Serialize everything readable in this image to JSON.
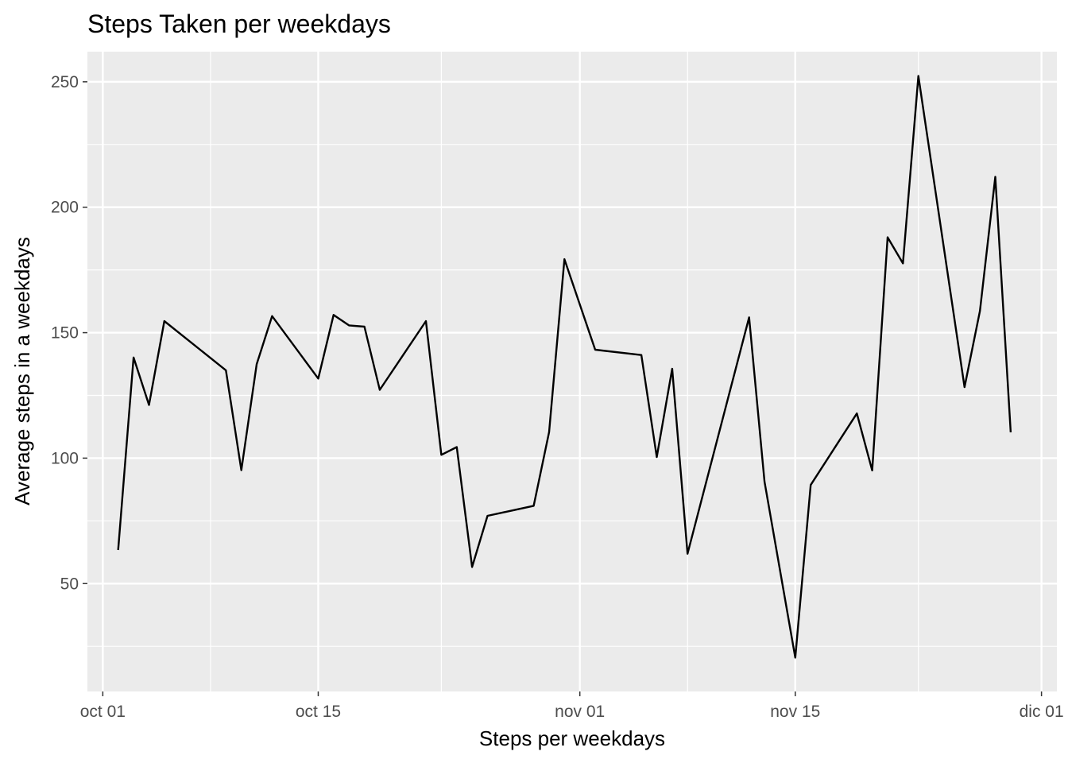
{
  "chart_data": {
    "type": "line",
    "title": "Steps Taken per weekdays",
    "xlabel": "Steps per weekdays",
    "ylabel": "Average steps in a weekdays",
    "x_ticks": [
      {
        "date": "2012-10-01",
        "label": "oct 01"
      },
      {
        "date": "2012-10-15",
        "label": "oct 15"
      },
      {
        "date": "2012-11-01",
        "label": "nov 01"
      },
      {
        "date": "2012-11-15",
        "label": "nov 15"
      },
      {
        "date": "2012-12-01",
        "label": "dic 01"
      }
    ],
    "x_minor_ticks": [
      "2012-10-08",
      "2012-10-23",
      "2012-11-08",
      "2012-11-23"
    ],
    "y_ticks": [
      50,
      100,
      150,
      200,
      250
    ],
    "y_minor_ticks": [
      25,
      75,
      125,
      175,
      225
    ],
    "xlim": [
      "2012-09-30",
      "2012-12-02"
    ],
    "ylim": [
      7,
      262
    ],
    "grid": true,
    "colors": {
      "panel": "#EBEBEB",
      "grid": "#FFFFFF",
      "line": "#000000"
    },
    "series": [
      {
        "x": [
          "2012-10-02",
          "2012-10-03",
          "2012-10-04",
          "2012-10-05",
          "2012-10-09",
          "2012-10-10",
          "2012-10-11",
          "2012-10-12",
          "2012-10-15",
          "2012-10-16",
          "2012-10-17",
          "2012-10-18",
          "2012-10-19",
          "2012-10-22",
          "2012-10-23",
          "2012-10-24",
          "2012-10-25",
          "2012-10-26",
          "2012-10-29",
          "2012-10-30",
          "2012-10-31",
          "2012-11-02",
          "2012-11-05",
          "2012-11-06",
          "2012-11-07",
          "2012-11-08",
          "2012-11-12",
          "2012-11-13",
          "2012-11-15",
          "2012-11-16",
          "2012-11-19",
          "2012-11-20",
          "2012-11-21",
          "2012-11-22",
          "2012-11-23",
          "2012-11-26",
          "2012-11-27",
          "2012-11-28",
          "2012-11-29"
        ],
        "values": [
          63.4,
          140.1,
          121.2,
          154.6,
          135.0,
          95.2,
          137.4,
          156.6,
          131.7,
          157.1,
          152.9,
          152.4,
          127.2,
          154.6,
          101.3,
          104.4,
          56.6,
          77.0,
          81.0,
          110.4,
          179.3,
          143.2,
          141.1,
          100.4,
          135.6,
          61.9,
          156.1,
          90.6,
          20.5,
          89.3,
          117.8,
          95.1,
          188.0,
          177.6,
          252.3,
          128.3,
          158.7,
          212.1,
          110.3
        ]
      }
    ]
  }
}
